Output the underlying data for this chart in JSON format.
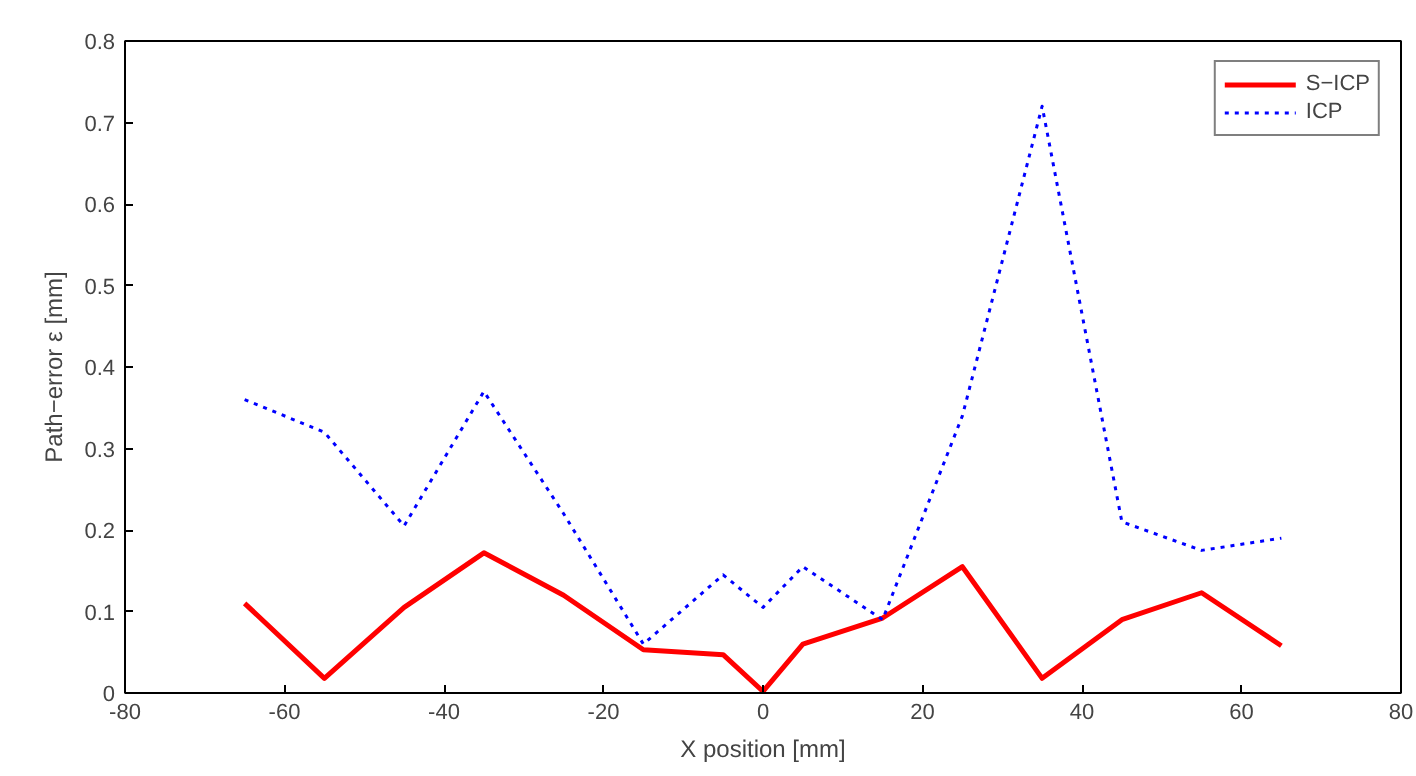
{
  "chart_data": {
    "type": "line",
    "xlabel": "X position [mm]",
    "ylabel": "Path−error ε [mm]",
    "x": [
      -65,
      -55,
      -45,
      -35,
      -25,
      -15,
      -5,
      0,
      5,
      15,
      25,
      35,
      45,
      55,
      65
    ],
    "series": [
      {
        "name": "S−ICP",
        "color": "#ff0000",
        "line_style": "solid",
        "values": [
          0.11,
          0.018,
          0.105,
          0.172,
          0.12,
          0.053,
          0.047,
          0.002,
          0.06,
          0.092,
          0.155,
          0.018,
          0.09,
          0.123,
          0.058
        ]
      },
      {
        "name": "ICP",
        "color": "#0000ff",
        "line_style": "dotted",
        "values": [
          0.36,
          0.32,
          0.205,
          0.37,
          0.22,
          0.06,
          0.145,
          0.105,
          0.155,
          0.09,
          0.34,
          0.72,
          0.21,
          0.175,
          0.19
        ]
      }
    ],
    "xlim": [
      -80,
      80
    ],
    "xticks": [
      -80,
      -60,
      -40,
      -20,
      0,
      20,
      40,
      60,
      80
    ],
    "ylim": [
      0,
      0.8
    ],
    "yticks": [
      0,
      0.1,
      0.2,
      0.3,
      0.4,
      0.5,
      0.6,
      0.7,
      0.8
    ],
    "grid": false,
    "legend": "top right",
    "marker": "none"
  }
}
